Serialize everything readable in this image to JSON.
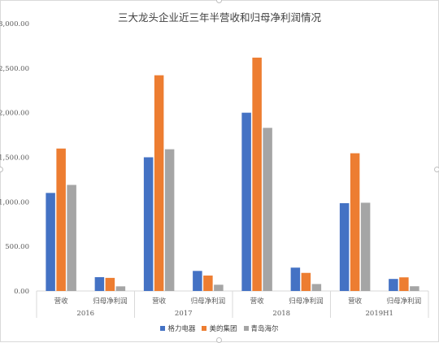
{
  "chart_data": {
    "type": "bar",
    "title": "三大龙头企业近三年半营收和归母净利润情况",
    "ylim": [
      0,
      3000
    ],
    "yticks": [
      "0.00",
      "500.00",
      "1,000.00",
      "1,500.00",
      "2,000.00",
      "2,500.00",
      "3,000.00"
    ],
    "groups": [
      {
        "label": "2016",
        "categories": [
          "营收",
          "归母净利润"
        ]
      },
      {
        "label": "2017",
        "categories": [
          "营收",
          "归母净利润"
        ]
      },
      {
        "label": "2018",
        "categories": [
          "营收",
          "归母净利润"
        ]
      },
      {
        "label": "2019H1",
        "categories": [
          "营收",
          "归母净利润"
        ]
      }
    ],
    "series": [
      {
        "name": "格力电器",
        "color": "#4472c4",
        "values": [
          1100,
          155,
          1500,
          225,
          2000,
          262,
          985,
          135
        ]
      },
      {
        "name": "美的集团",
        "color": "#ed7d31",
        "values": [
          1598,
          147,
          2420,
          173,
          2618,
          203,
          1545,
          153
        ]
      },
      {
        "name": "青岛海尔",
        "color": "#a5a5a5",
        "values": [
          1190,
          52,
          1590,
          70,
          1830,
          78,
          990,
          53
        ]
      }
    ],
    "grid": false,
    "legend_position": "bottom"
  }
}
